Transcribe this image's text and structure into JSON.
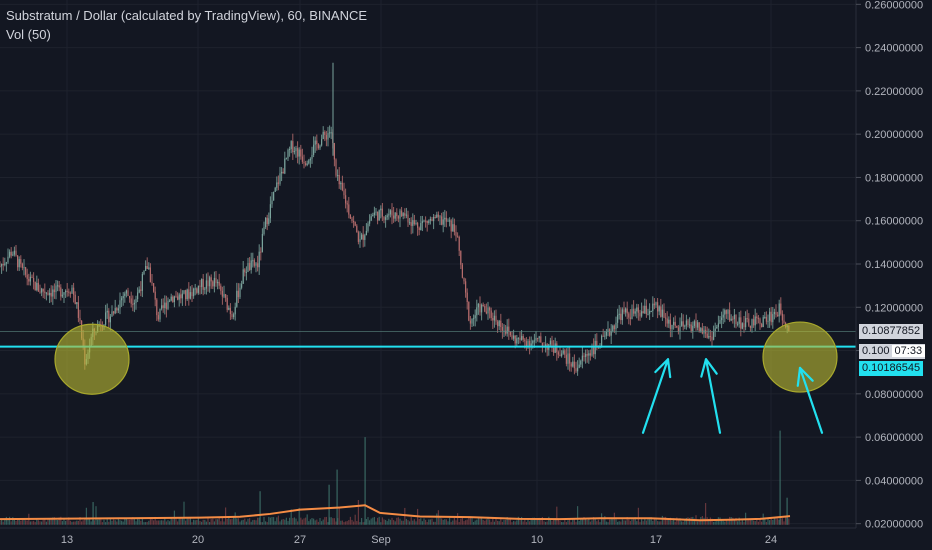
{
  "header": {
    "title": "Substratum / Dollar (calculated by TradingView), 60, BINANCE",
    "volume_label": "Vol (50)"
  },
  "price_tags": {
    "last_price": "0.10877852",
    "countdown_prefix": "0.100",
    "countdown": "07:33",
    "level_price": "0.10186545"
  },
  "colors": {
    "background": "#131722",
    "grid": "#1e222d",
    "axis_text": "#b2b5be",
    "candle_up": "#7aa39c",
    "candle_down": "#b56c6c",
    "volume_ma": "#f58c45",
    "horizontal_line": "#22e0ef",
    "circle_fill": "#b8b832",
    "arrow": "#22e0ef"
  },
  "chart_data": {
    "type": "candlestick",
    "title": "Substratum / Dollar (calculated by TradingView), 60, BINANCE",
    "ylim": [
      0.018,
      0.262
    ],
    "y_ticks": [
      "0.26000000",
      "0.24000000",
      "0.22000000",
      "0.20000000",
      "0.18000000",
      "0.16000000",
      "0.14000000",
      "0.12000000",
      "0.10000000",
      "0.08000000",
      "0.06000000",
      "0.04000000",
      "0.02000000"
    ],
    "x_ticks": [
      "13",
      "20",
      "27",
      "Sep",
      "10",
      "17",
      "24"
    ],
    "price_path": [
      {
        "x": 0,
        "y": 0.139
      },
      {
        "x": 12,
        "y": 0.146
      },
      {
        "x": 22,
        "y": 0.137
      },
      {
        "x": 30,
        "y": 0.132
      },
      {
        "x": 40,
        "y": 0.128
      },
      {
        "x": 55,
        "y": 0.127
      },
      {
        "x": 72,
        "y": 0.129
      },
      {
        "x": 78,
        "y": 0.118
      },
      {
        "x": 85,
        "y": 0.095
      },
      {
        "x": 92,
        "y": 0.107
      },
      {
        "x": 100,
        "y": 0.113
      },
      {
        "x": 112,
        "y": 0.117
      },
      {
        "x": 125,
        "y": 0.127
      },
      {
        "x": 135,
        "y": 0.123
      },
      {
        "x": 148,
        "y": 0.14
      },
      {
        "x": 158,
        "y": 0.115
      },
      {
        "x": 170,
        "y": 0.125
      },
      {
        "x": 185,
        "y": 0.125
      },
      {
        "x": 200,
        "y": 0.13
      },
      {
        "x": 215,
        "y": 0.132
      },
      {
        "x": 232,
        "y": 0.117
      },
      {
        "x": 245,
        "y": 0.138
      },
      {
        "x": 258,
        "y": 0.14
      },
      {
        "x": 265,
        "y": 0.158
      },
      {
        "x": 278,
        "y": 0.178
      },
      {
        "x": 292,
        "y": 0.195
      },
      {
        "x": 305,
        "y": 0.188
      },
      {
        "x": 320,
        "y": 0.197
      },
      {
        "x": 331,
        "y": 0.202
      },
      {
        "x": 336,
        "y": 0.18
      },
      {
        "x": 345,
        "y": 0.17
      },
      {
        "x": 360,
        "y": 0.15
      },
      {
        "x": 372,
        "y": 0.163
      },
      {
        "x": 390,
        "y": 0.163
      },
      {
        "x": 405,
        "y": 0.163
      },
      {
        "x": 415,
        "y": 0.158
      },
      {
        "x": 430,
        "y": 0.16
      },
      {
        "x": 445,
        "y": 0.16
      },
      {
        "x": 456,
        "y": 0.155
      },
      {
        "x": 462,
        "y": 0.135
      },
      {
        "x": 470,
        "y": 0.113
      },
      {
        "x": 480,
        "y": 0.12
      },
      {
        "x": 495,
        "y": 0.115
      },
      {
        "x": 515,
        "y": 0.105
      },
      {
        "x": 540,
        "y": 0.104
      },
      {
        "x": 560,
        "y": 0.1
      },
      {
        "x": 575,
        "y": 0.092
      },
      {
        "x": 590,
        "y": 0.1
      },
      {
        "x": 605,
        "y": 0.105
      },
      {
        "x": 620,
        "y": 0.117
      },
      {
        "x": 640,
        "y": 0.117
      },
      {
        "x": 655,
        "y": 0.12
      },
      {
        "x": 675,
        "y": 0.11
      },
      {
        "x": 695,
        "y": 0.112
      },
      {
        "x": 710,
        "y": 0.106
      },
      {
        "x": 725,
        "y": 0.117
      },
      {
        "x": 745,
        "y": 0.112
      },
      {
        "x": 765,
        "y": 0.114
      },
      {
        "x": 780,
        "y": 0.119
      },
      {
        "x": 790,
        "y": 0.109
      }
    ],
    "volume_ma_path": [
      {
        "x": 0,
        "y": 0.0221
      },
      {
        "x": 120,
        "y": 0.0225
      },
      {
        "x": 200,
        "y": 0.0228
      },
      {
        "x": 240,
        "y": 0.0232
      },
      {
        "x": 270,
        "y": 0.0245
      },
      {
        "x": 300,
        "y": 0.0265
      },
      {
        "x": 340,
        "y": 0.0275
      },
      {
        "x": 365,
        "y": 0.0285
      },
      {
        "x": 380,
        "y": 0.025
      },
      {
        "x": 420,
        "y": 0.0233
      },
      {
        "x": 470,
        "y": 0.023
      },
      {
        "x": 520,
        "y": 0.0222
      },
      {
        "x": 560,
        "y": 0.0221
      },
      {
        "x": 600,
        "y": 0.0225
      },
      {
        "x": 650,
        "y": 0.0225
      },
      {
        "x": 700,
        "y": 0.0216
      },
      {
        "x": 730,
        "y": 0.0218
      },
      {
        "x": 760,
        "y": 0.0222
      },
      {
        "x": 790,
        "y": 0.0235
      }
    ],
    "horizontal_level": 0.1018,
    "last_price_level": 0.1088,
    "annotations": {
      "circles": [
        {
          "x": 92,
          "y": 0.096
        },
        {
          "x": 800,
          "y": 0.097
        }
      ],
      "arrows": [
        {
          "from": {
            "x": 643,
            "y": 0.062
          },
          "to": {
            "x": 668,
            "y": 0.096
          }
        },
        {
          "from": {
            "x": 720,
            "y": 0.062
          },
          "to": {
            "x": 706,
            "y": 0.096
          }
        },
        {
          "from": {
            "x": 822,
            "y": 0.062
          },
          "to": {
            "x": 800,
            "y": 0.092
          }
        }
      ]
    }
  }
}
